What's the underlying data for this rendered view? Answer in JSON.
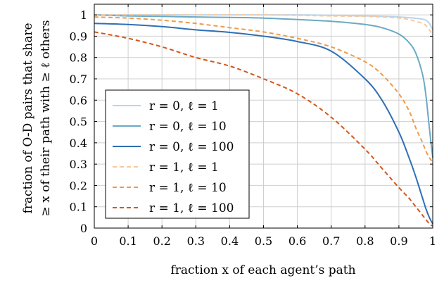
{
  "chart_data": {
    "type": "line",
    "xlabel": "fraction x of each agent’s path",
    "ylabel_line1": "fraction of O-D pairs that share",
    "ylabel_line2": "≥ x of their path with ≥ ℓ others",
    "xlim": [
      0,
      1
    ],
    "ylim": [
      0,
      1.05
    ],
    "xticks": [
      "0",
      "0.1",
      "0.2",
      "0.3",
      "0.4",
      "0.5",
      "0.6",
      "0.7",
      "0.8",
      "0.9",
      "1"
    ],
    "yticks": [
      "0",
      "0.1",
      "0.2",
      "0.3",
      "0.4",
      "0.5",
      "0.6",
      "0.7",
      "0.8",
      "0.9",
      "1"
    ],
    "grid": true,
    "legend_position": "bottom-left",
    "x": [
      0,
      0.1,
      0.2,
      0.3,
      0.4,
      0.5,
      0.6,
      0.7,
      0.8,
      0.85,
      0.9,
      0.93,
      0.95,
      0.97,
      0.98,
      0.99,
      1.0
    ],
    "series": [
      {
        "name": "r = 0, ℓ = 1",
        "color": "#b9d3ec",
        "dash": "solid",
        "values": [
          1.0,
          1.0,
          1.0,
          1.0,
          1.0,
          1.0,
          1.0,
          0.998,
          0.995,
          0.993,
          0.99,
          0.987,
          0.984,
          0.98,
          0.975,
          0.96,
          0.93
        ]
      },
      {
        "name": "r = 0, ℓ = 10",
        "color": "#6aaac4",
        "dash": "solid",
        "values": [
          1.0,
          0.995,
          0.993,
          0.99,
          0.988,
          0.985,
          0.978,
          0.97,
          0.955,
          0.94,
          0.91,
          0.87,
          0.82,
          0.72,
          0.62,
          0.47,
          0.33
        ]
      },
      {
        "name": "r = 0, ℓ = 100",
        "color": "#2f6fb4",
        "dash": "solid",
        "values": [
          0.96,
          0.955,
          0.945,
          0.93,
          0.918,
          0.9,
          0.875,
          0.83,
          0.7,
          0.6,
          0.45,
          0.33,
          0.24,
          0.14,
          0.09,
          0.05,
          0.02
        ]
      },
      {
        "name": "r = 1, ℓ = 1",
        "color": "#f6c9a0",
        "dash": "dashed",
        "values": [
          1.0,
          1.0,
          1.0,
          1.0,
          1.0,
          1.0,
          0.998,
          0.995,
          0.993,
          0.99,
          0.985,
          0.978,
          0.97,
          0.96,
          0.95,
          0.93,
          0.91
        ]
      },
      {
        "name": "r = 1, ℓ = 10",
        "color": "#f09a4c",
        "dash": "dashed",
        "values": [
          0.99,
          0.985,
          0.975,
          0.96,
          0.94,
          0.92,
          0.89,
          0.85,
          0.78,
          0.72,
          0.63,
          0.55,
          0.47,
          0.4,
          0.36,
          0.33,
          0.31
        ]
      },
      {
        "name": "r = 1, ℓ = 100",
        "color": "#d4561a",
        "dash": "dashed",
        "values": [
          0.92,
          0.89,
          0.85,
          0.8,
          0.76,
          0.7,
          0.63,
          0.52,
          0.37,
          0.28,
          0.19,
          0.14,
          0.1,
          0.06,
          0.04,
          0.02,
          0.01
        ]
      }
    ]
  }
}
